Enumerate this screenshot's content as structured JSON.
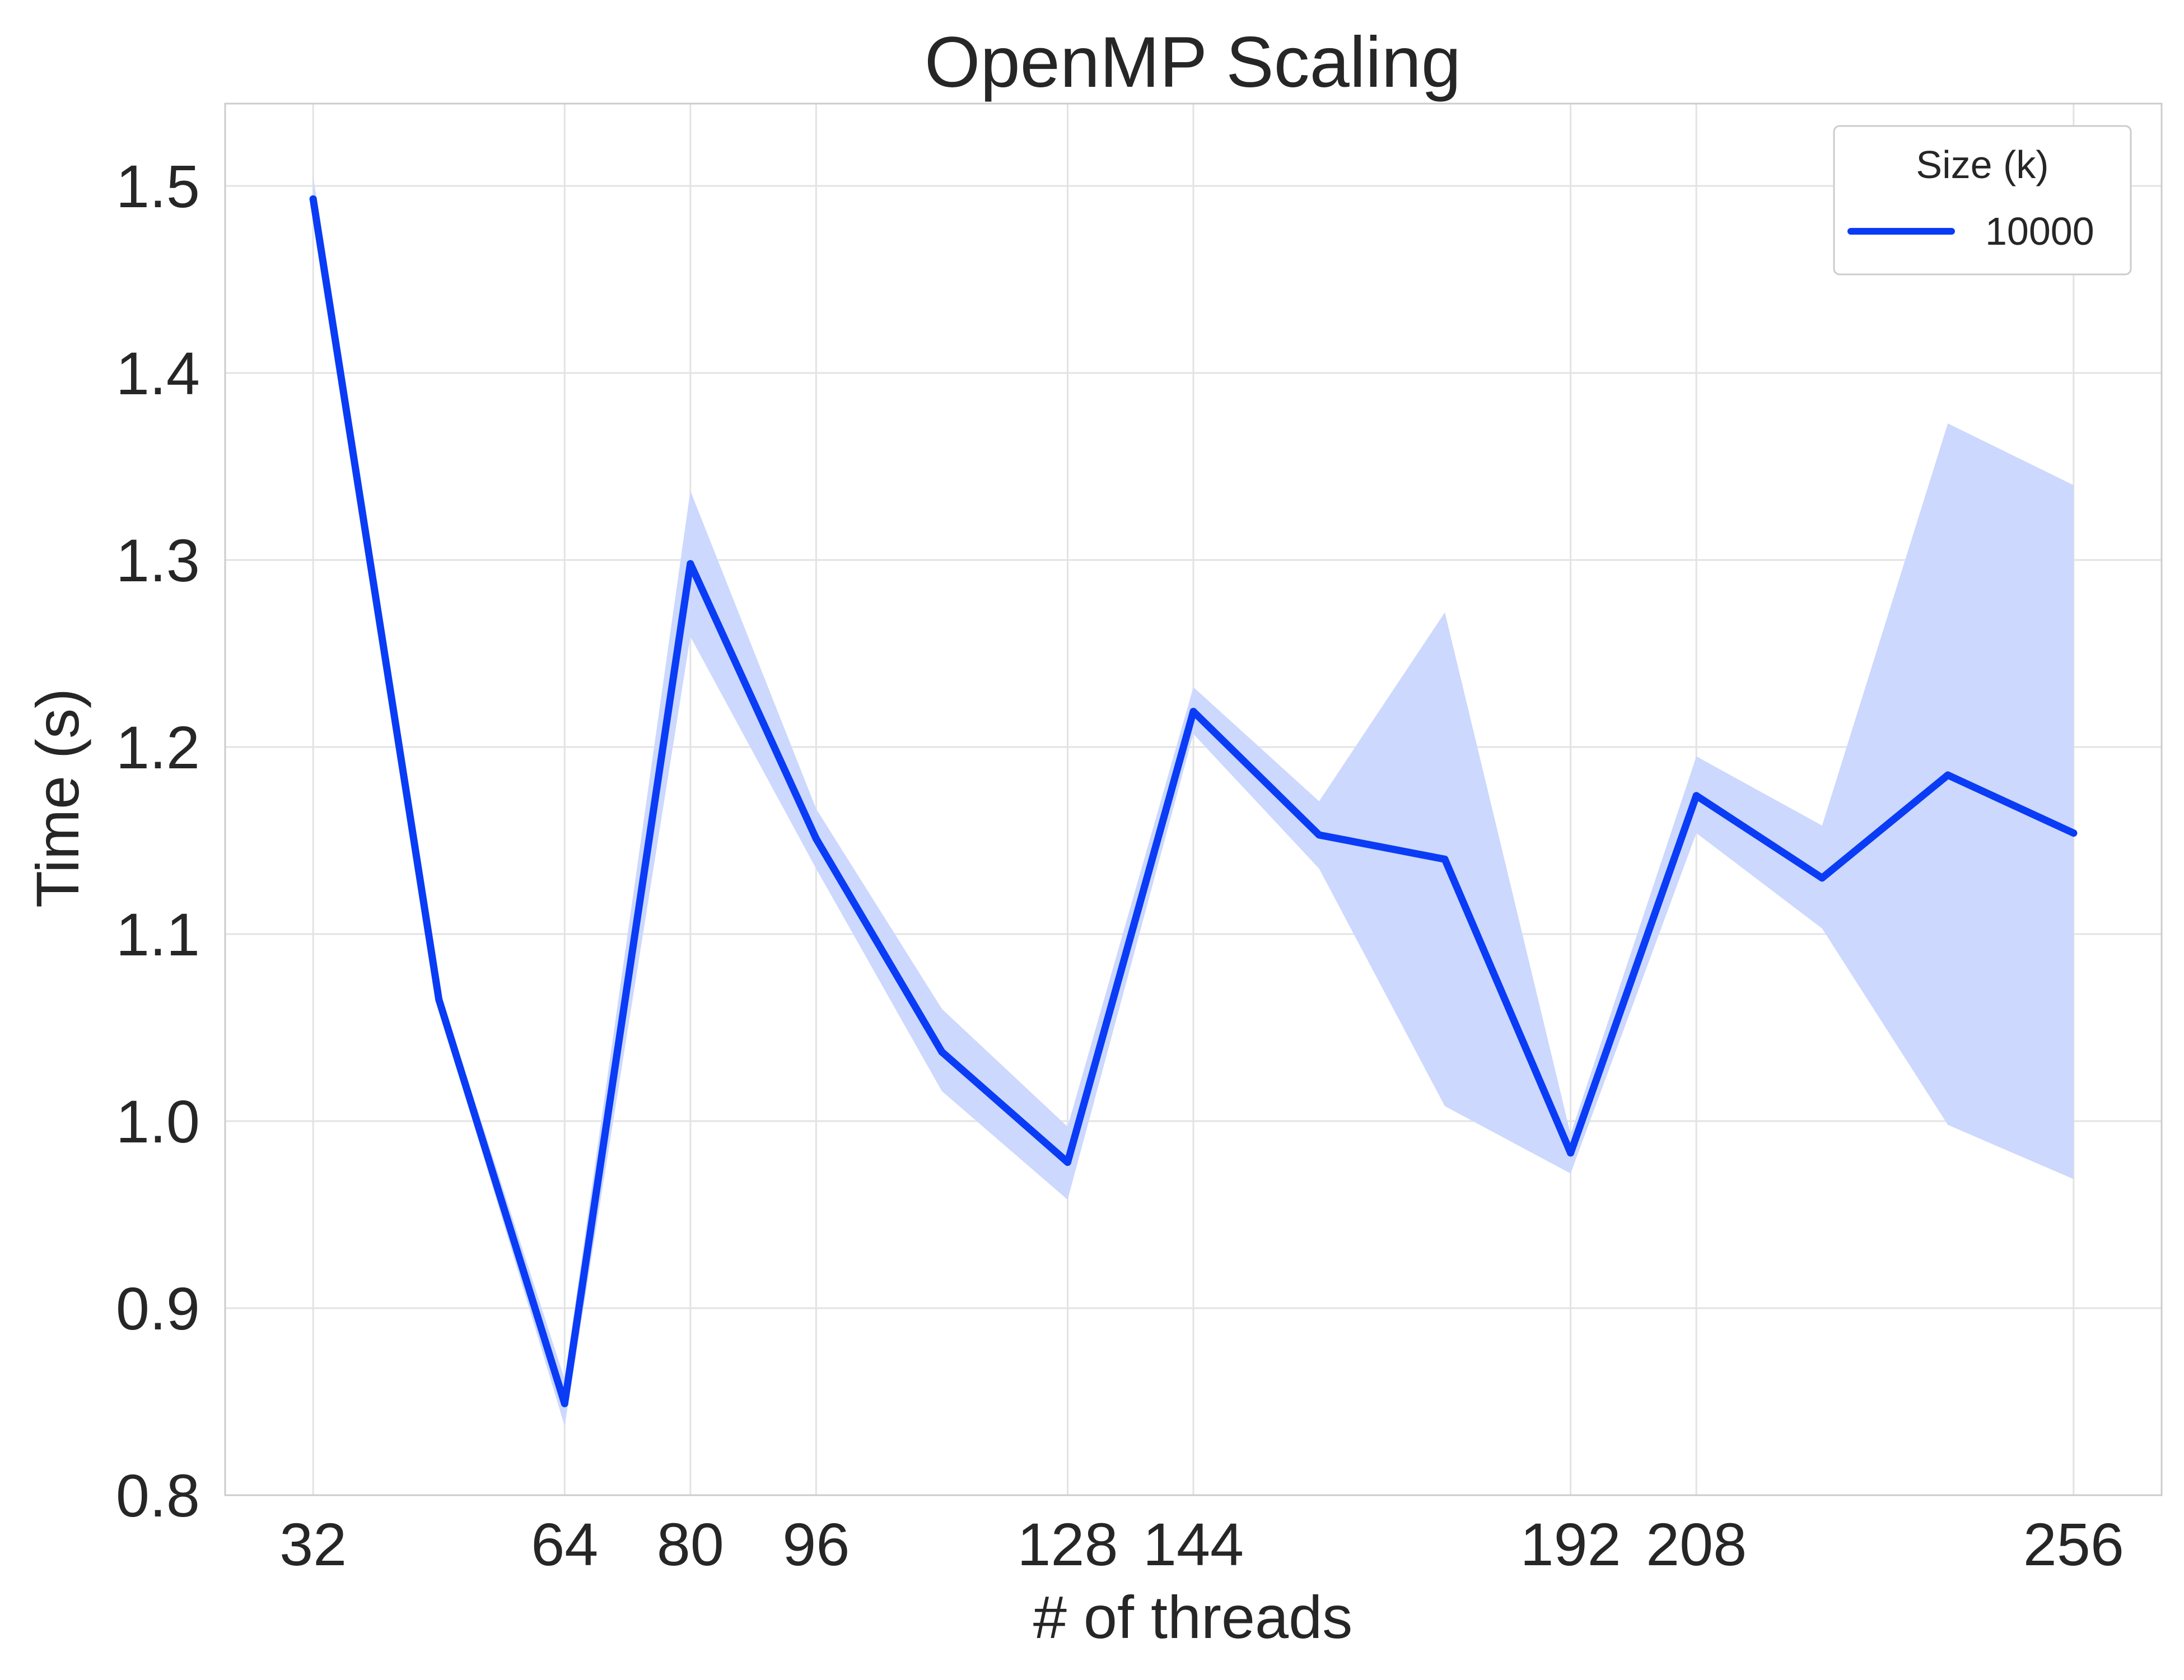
{
  "chart_data": {
    "type": "line",
    "title": "OpenMP Scaling",
    "xlabel": "# of threads",
    "ylabel": "Time (s)",
    "x": [
      32,
      48,
      64,
      80,
      96,
      112,
      128,
      144,
      160,
      176,
      192,
      208,
      224,
      240,
      256
    ],
    "xticks": [
      32,
      64,
      80,
      96,
      128,
      144,
      192,
      208,
      256
    ],
    "xtick_labels": [
      "32",
      "64",
      "80",
      "96",
      "128",
      "144",
      "192",
      "208",
      "256"
    ],
    "yticks": [
      0.8,
      0.9,
      1.0,
      1.1,
      1.2,
      1.3,
      1.4,
      1.5
    ],
    "ytick_labels": [
      "0.8",
      "0.9",
      "1.0",
      "1.1",
      "1.2",
      "1.3",
      "1.4",
      "1.5"
    ],
    "xlim": [
      20.8,
      267.2
    ],
    "ylim": [
      0.8,
      1.544
    ],
    "grid": true,
    "legend": {
      "title": "Size (k)",
      "placement": "top-right"
    },
    "series": [
      {
        "name": "10000",
        "color": "#0a3cf5",
        "band_color": "#ccd8fd",
        "values": [
          1.493,
          1.065,
          0.849,
          1.298,
          1.151,
          1.037,
          0.978,
          1.219,
          1.153,
          1.14,
          0.983,
          1.174,
          1.13,
          1.185,
          1.154
        ],
        "ci_low": [
          1.48,
          1.06,
          0.837,
          1.259,
          1.135,
          1.016,
          0.958,
          1.207,
          1.135,
          1.008,
          0.972,
          1.154,
          1.103,
          0.998,
          0.969
        ],
        "ci_high": [
          1.505,
          1.07,
          0.862,
          1.337,
          1.167,
          1.06,
          0.997,
          1.232,
          1.171,
          1.272,
          0.993,
          1.195,
          1.158,
          1.373,
          1.34
        ]
      }
    ]
  }
}
